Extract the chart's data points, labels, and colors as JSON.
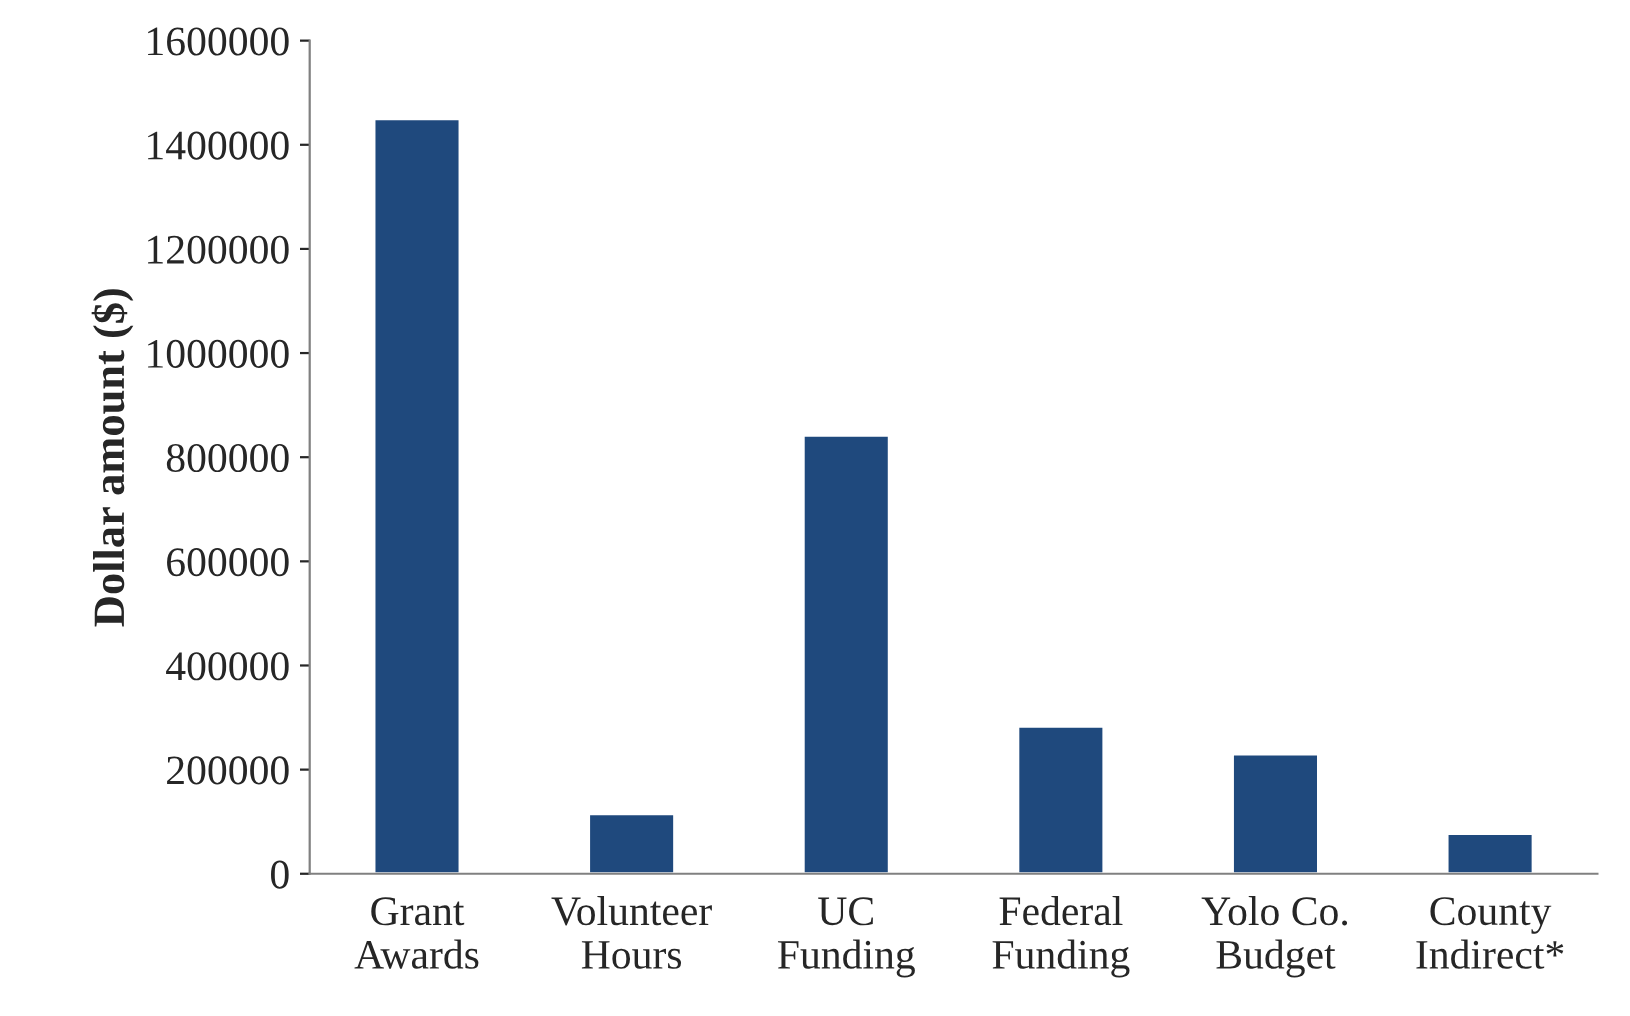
{
  "chart_data": {
    "type": "bar",
    "ylabel": "Dollar amount ($)",
    "categories": [
      "Grant\nAwards",
      "Volunteer\nHours",
      "UC\nFunding",
      "Federal\nFunding",
      "Yolo Co.\nBudget",
      "County\nIndirect*"
    ],
    "values": [
      1450000,
      115000,
      842000,
      283000,
      230000,
      77000
    ],
    "color": "#1f497d",
    "ylim": [
      0,
      1600000
    ],
    "yticks": [
      0,
      200000,
      400000,
      600000,
      800000,
      1000000,
      1200000,
      1400000,
      1600000
    ],
    "grid": false,
    "legend": false
  }
}
